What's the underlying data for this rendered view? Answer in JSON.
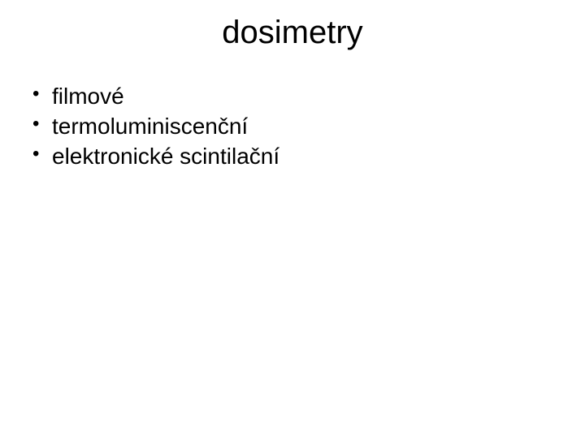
{
  "title": "dosimetry",
  "bullets": [
    "filmové",
    "termoluminiscenční",
    "elektronické scintilační"
  ],
  "styling": {
    "background_color": "#ffffff",
    "text_color": "#000000",
    "title_fontsize": 40,
    "bullet_fontsize": 28,
    "font_family": "Arial"
  }
}
